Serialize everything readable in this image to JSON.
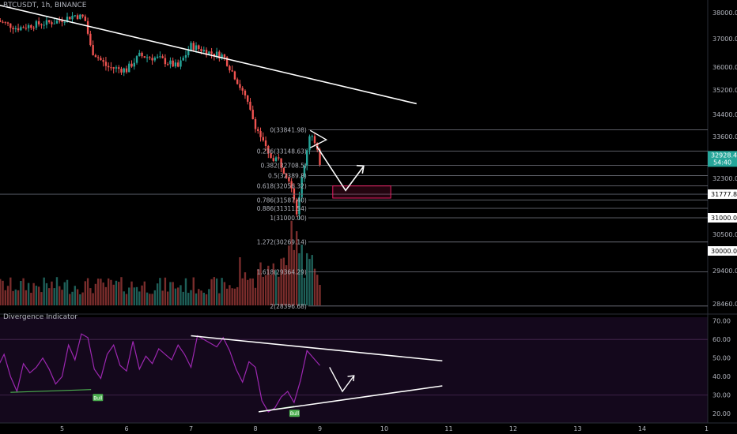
{
  "header": {
    "symbol_line": "BTCUSDT, 1h, BINANCE"
  },
  "indicator": {
    "title": "Divergence Indicator"
  },
  "colors": {
    "up": "#26a69a",
    "down": "#ef5350",
    "rsi": "#9c27b0",
    "trendline": "#ffffff",
    "box": "#e91e63",
    "bull": "#4caf50",
    "fib": "#787b86",
    "price_tag": "#26a69a"
  },
  "chart_data": [
    {
      "type": "candlestick",
      "title": "BTCUSDT, 1h, BINANCE",
      "xlabel": "",
      "ylabel": "",
      "x_ticks": [
        "5",
        "6",
        "7",
        "8",
        "9",
        "10",
        "11",
        "12",
        "13",
        "14",
        "1"
      ],
      "y_ticks": [
        "38000.00",
        "37000.00",
        "36000.00",
        "35200.00",
        "34400.00",
        "33600.00",
        "32300.00",
        "31000.00",
        "30500.00",
        "30000.00",
        "29400.00",
        "28460.00"
      ],
      "last_price": "32928.45",
      "countdown": "54:40",
      "price_tags": [
        "31777.89",
        "31000.00",
        "30000.00"
      ],
      "fib_levels": [
        {
          "label": "0(33841.98)",
          "price": 33841.98
        },
        {
          "label": "0.236(33148.63)",
          "price": 33148.63
        },
        {
          "label": "0.382(32708.5)",
          "price": 32708.5
        },
        {
          "label": "0.5(32389.8)",
          "price": 32389.8
        },
        {
          "label": "0.618(32056.32)",
          "price": 32056.32
        },
        {
          "label": "0.786(31587.40)",
          "price": 31587.4
        },
        {
          "label": "0.886(31311.54)",
          "price": 31311.54
        },
        {
          "label": "1(31000.00)",
          "price": 31000.0
        },
        {
          "label": "1.272(30269.14)",
          "price": 30269.14
        },
        {
          "label": "1.618(29364.29)",
          "price": 29364.29
        },
        {
          "label": "2(28396.68)",
          "price": 28396.68
        }
      ],
      "trendline": {
        "from": [
          4.0,
          38300
        ],
        "to": [
          10.5,
          34750
        ]
      },
      "target_zone": {
        "x": [
          9.2,
          10.1
        ],
        "price_low": 31650,
        "price_high": 32050
      }
    },
    {
      "type": "line",
      "title": "Divergence Indicator",
      "y_ticks": [
        "70.00",
        "60.00",
        "50.00",
        "40.00",
        "30.00",
        "20.00"
      ],
      "ylim": [
        15,
        72
      ],
      "signals": [
        "Bull",
        "Bull"
      ],
      "series": [
        {
          "name": "",
          "x": [
            4.0,
            4.1,
            4.2,
            4.3,
            4.4,
            4.5,
            4.6,
            4.7,
            4.8,
            4.9,
            5.0,
            5.1,
            5.2,
            5.3,
            5.4,
            5.5,
            5.6,
            5.7,
            5.8,
            5.9,
            6.0,
            6.1,
            6.2,
            6.3,
            6.4,
            6.5,
            6.6,
            6.7,
            6.8,
            6.9,
            7.0,
            7.1,
            7.2,
            7.3,
            7.4,
            7.5,
            7.6,
            7.7,
            7.8,
            7.9,
            8.0,
            8.1,
            8.2,
            8.3,
            8.4,
            8.5,
            8.6,
            8.7,
            8.8,
            8.9,
            9.0
          ],
          "values": [
            45,
            52,
            40,
            32,
            47,
            42,
            45,
            50,
            44,
            36,
            40,
            57,
            49,
            63,
            61,
            44,
            39,
            52,
            57,
            46,
            43,
            59,
            44,
            51,
            47,
            55,
            52,
            49,
            57,
            52,
            45,
            62,
            60,
            58,
            56,
            61,
            54,
            44,
            37,
            48,
            45,
            27,
            21,
            23,
            29,
            32,
            26,
            38,
            54,
            50,
            46
          ]
        }
      ]
    }
  ]
}
